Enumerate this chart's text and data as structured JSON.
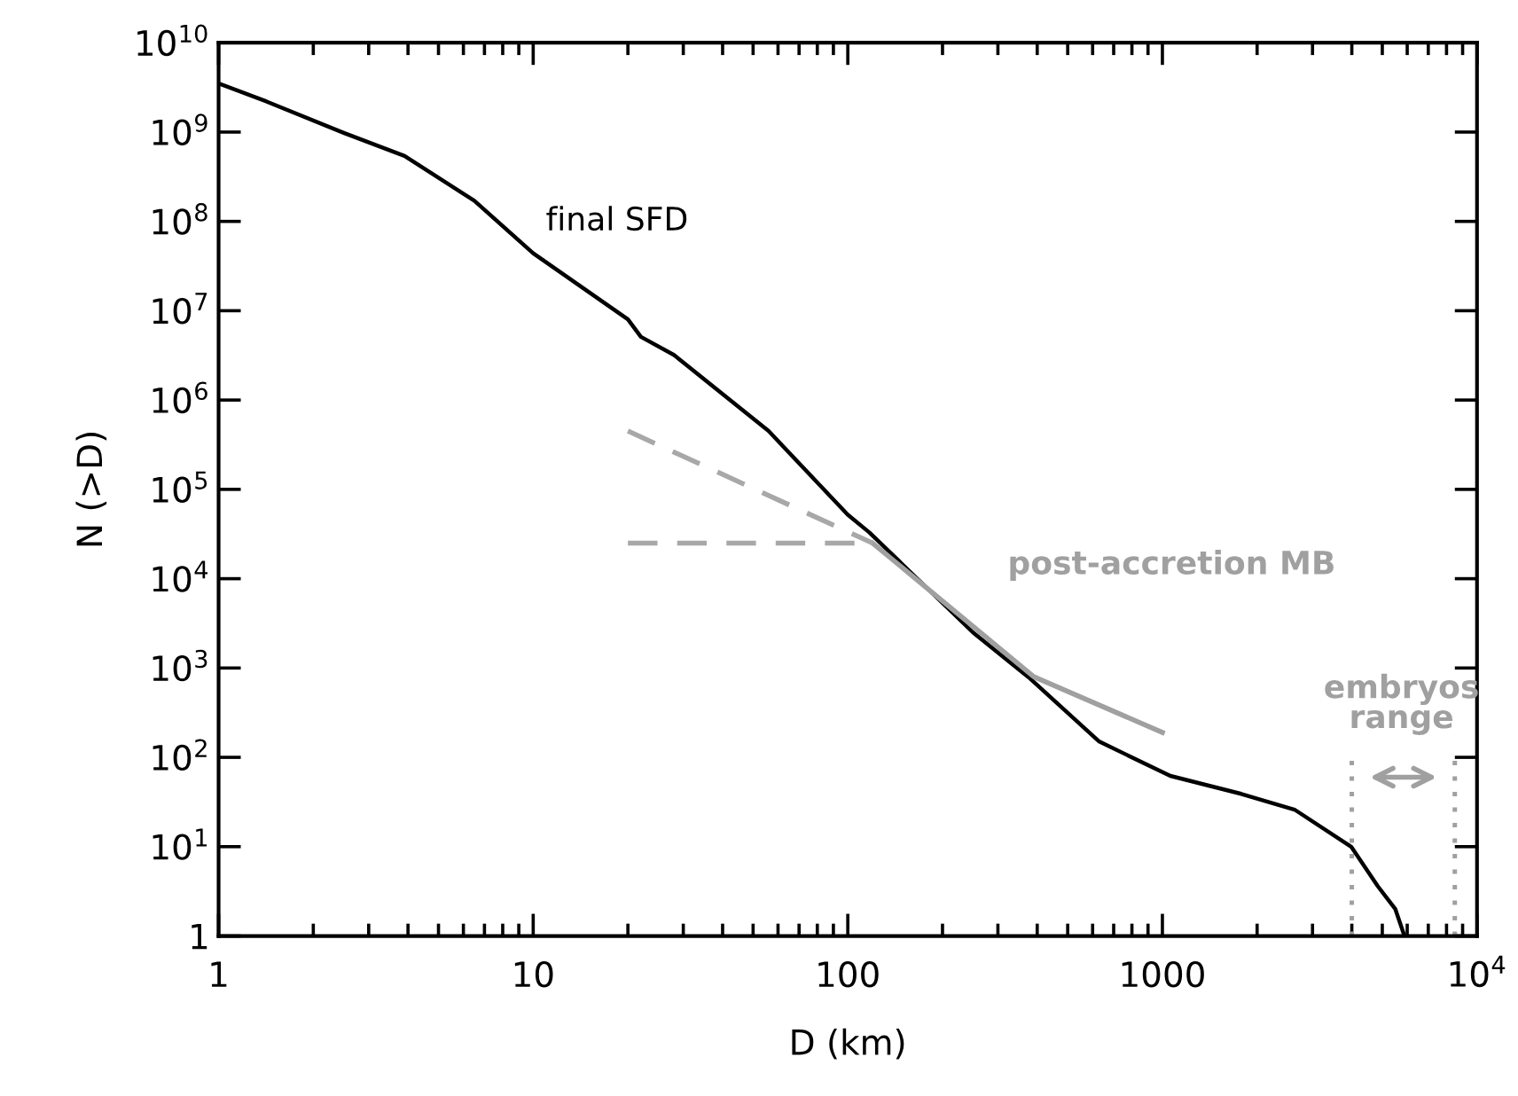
{
  "chart_data": {
    "type": "line",
    "xlabel": "D (km)",
    "ylabel": "N (>D)",
    "log": "xy",
    "xlim": [
      1,
      10000
    ],
    "ylim": [
      1,
      10000000000
    ],
    "xticks": [
      1,
      10,
      100,
      1000,
      {
        "value": 10000,
        "label": "10$^{4}$"
      }
    ],
    "yticks": [
      1,
      {
        "value": 10,
        "label": "10$^{1}$"
      },
      {
        "value": 100,
        "label": "10$^{2}$"
      },
      {
        "value": 1000,
        "label": "10$^{3}$"
      },
      {
        "value": 10000,
        "label": "10$^{4}$"
      },
      {
        "value": 100000,
        "label": "10$^{5}$"
      },
      {
        "value": 1000000,
        "label": "10$^{6}$"
      },
      {
        "value": 10000000,
        "label": "10$^{7}$"
      },
      {
        "value": 100000000,
        "label": "10$^{8}$"
      },
      {
        "value": 1000000000,
        "label": "10$^{9}$"
      },
      {
        "value": 10000000000,
        "label": "10$^{10}$"
      }
    ],
    "grid": false,
    "legend": false,
    "marker": "none",
    "series": [
      {
        "name": "final SFD",
        "color": "#000000",
        "line_style": "solid",
        "x": [
          1,
          1.42,
          2.5,
          3.9,
          6.5,
          10,
          20,
          22,
          28,
          56,
          100,
          117,
          250,
          380,
          630,
          1060,
          1780,
          2630,
          3980,
          4840,
          5500,
          5880
        ],
        "values": [
          3500000000,
          2200000000,
          980000000,
          540000000,
          170000000,
          44000000,
          8000000,
          5100000,
          3200000,
          450000,
          52000,
          33000,
          2500,
          760,
          150,
          62,
          39,
          26,
          10,
          3.6,
          2,
          1
        ]
      },
      {
        "name": "post-accretion MB",
        "color": "#a0a0a0",
        "line_style": "solid",
        "x": [
          120,
          390,
          1000
        ],
        "values": [
          25000,
          800,
          190
        ]
      },
      {
        "color": "#a8a8a8",
        "line_style": "dashed",
        "x": [
          20,
          120
        ],
        "values": [
          450000,
          25000
        ]
      },
      {
        "color": "#a8a8a8",
        "line_style": "dashed",
        "x": [
          20,
          120
        ],
        "values": [
          25000,
          25000
        ]
      }
    ],
    "ref_lines": [
      {
        "axis": "x",
        "value": 4000,
        "color": "#a0a0a0",
        "line_style": "dotted"
      },
      {
        "axis": "x",
        "value": 8500,
        "color": "#a0a0a0",
        "line_style": "dotted"
      }
    ],
    "annotations": [
      "embryos\nrange"
    ]
  }
}
